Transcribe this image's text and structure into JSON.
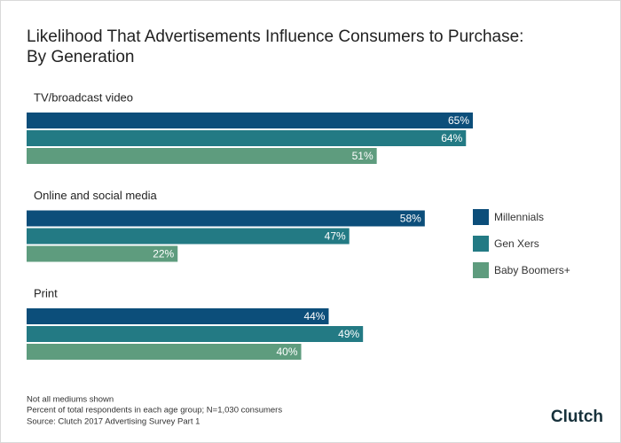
{
  "chart_data": {
    "type": "bar",
    "orientation": "horizontal",
    "title": [
      "Likelihood That Advertisements Influence Consumers to Purchase:",
      "By Generation"
    ],
    "categories": [
      "TV/broadcast video",
      "Online and social media",
      "Print"
    ],
    "series": [
      {
        "name": "Millennials",
        "color": "#0c4e7a",
        "values": [
          65,
          58,
          44
        ],
        "value_labels": [
          "65%",
          "58%",
          "44%"
        ]
      },
      {
        "name": "Gen Xers",
        "color": "#237a84",
        "values": [
          64,
          47,
          49
        ],
        "value_labels": [
          "64%",
          "47%",
          "49%"
        ]
      },
      {
        "name": "Baby Boomers+",
        "color": "#5e9c7e",
        "values": [
          51,
          22,
          40
        ],
        "value_labels": [
          "51%",
          "22%",
          "40%"
        ]
      }
    ],
    "notes": [
      "Not all mediums shown",
      "Percent of total respondents in each age group; N=1,030 consumers",
      "Source: Clutch 2017 Advertising Survey Part 1"
    ],
    "logo": "Clutch"
  }
}
